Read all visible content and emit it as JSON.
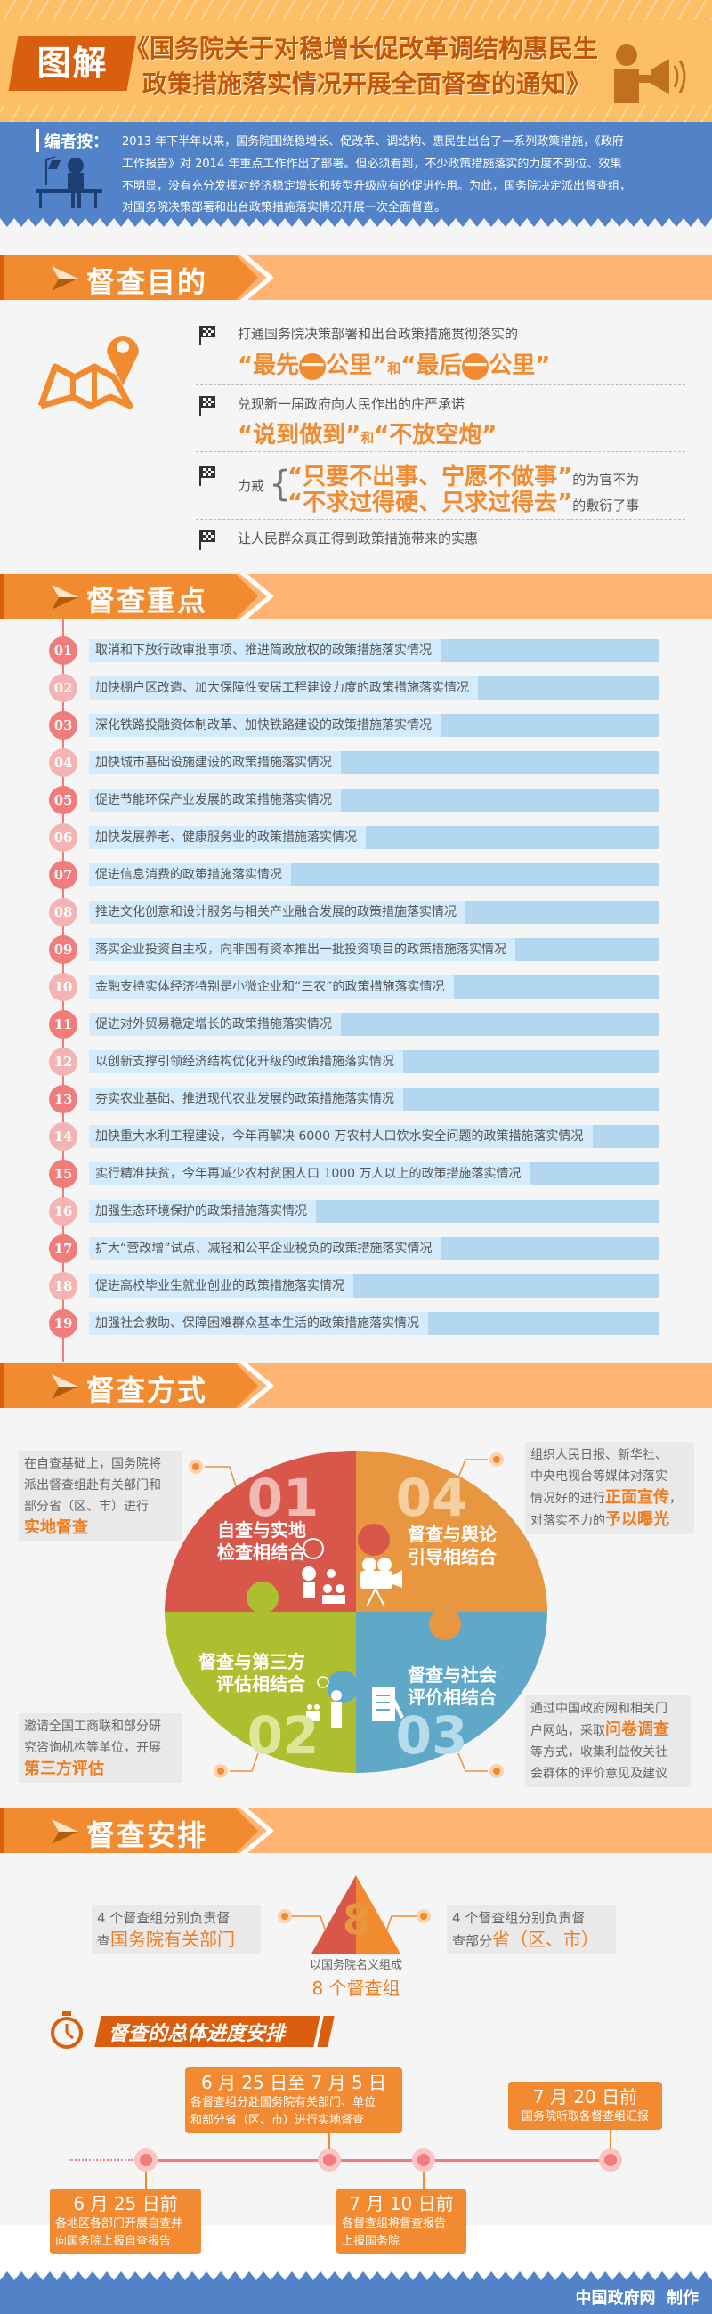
{
  "header": {
    "badge": "图解",
    "title_line1": "《国务院关于对稳增长促改革调结构惠民生",
    "title_line2": "政策措施落实情况开展全面督查的通知》",
    "icon": "megaphone-person-icon",
    "colors": {
      "header_bg": "#fdbf66",
      "accent": "#d95f0e",
      "title": "#c4560a"
    }
  },
  "editor": {
    "label": "编者按：",
    "lines": [
      "2013 年下半年以来，国务院围绕稳增长、促改革、调结构、惠民生出台了一系列政策措施，《政府",
      "工作报告》对 2014 年重点工作作出了部署。但必须看到，不少政策措施落实的力度不到位、效果",
      "不明显，没有充分发挥对经济稳定增长和转型升级应有的促进作用。为此，国务院决定派出督查组，",
      "对国务院决策部署和出台政策措施落实情况开展一次全面督查。"
    ],
    "bg": "#5283c8"
  },
  "purpose": {
    "title": "督查目的",
    "icon": "map-pin-icon",
    "item1": {
      "text": "打通国务院决策部署和出台政策措施贯彻落实的",
      "a": "“最先",
      "one": "一",
      "b": "公里”",
      "and": "和",
      "c": "“最后",
      "d": "公里”"
    },
    "item2": {
      "text": "兑现新一届政府向人民作出的庄严承诺",
      "a": "“说到做到”",
      "and": "和",
      "b": "“不放空炮”"
    },
    "item3": {
      "prefix": "力戒",
      "line1": "“只要不出事、宁愿不做事”",
      "suffix1": "的为官不为",
      "line2": "“不求过得硬、只求过得去”",
      "suffix2": "的敷衍了事"
    },
    "item4": {
      "text": "让人民群众真正得到政策措施带来的实惠"
    }
  },
  "focus": {
    "title": "督查重点",
    "items": [
      {
        "num": "01",
        "text": "取消和下放行政审批事项、推进简政放权的政策措施落实情况"
      },
      {
        "num": "02",
        "text": "加快棚户区改造、加大保障性安居工程建设力度的政策措施落实情况"
      },
      {
        "num": "03",
        "text": "深化铁路投融资体制改革、加快铁路建设的政策措施落实情况"
      },
      {
        "num": "04",
        "text": "加快城市基础设施建设的政策措施落实情况"
      },
      {
        "num": "05",
        "text": "促进节能环保产业发展的政策措施落实情况"
      },
      {
        "num": "06",
        "text": "加快发展养老、健康服务业的政策措施落实情况"
      },
      {
        "num": "07",
        "text": "促进信息消费的政策措施落实情况"
      },
      {
        "num": "08",
        "text": "推进文化创意和设计服务与相关产业融合发展的政策措施落实情况"
      },
      {
        "num": "09",
        "text": "落实企业投资自主权，向非国有资本推出一批投资项目的政策措施落实情况"
      },
      {
        "num": "10",
        "text": "金融支持实体经济特别是小微企业和“三农”的政策措施落实情况"
      },
      {
        "num": "11",
        "text": "促进对外贸易稳定增长的政策措施落实情况"
      },
      {
        "num": "12",
        "text": "以创新支撑引领经济结构优化升级的政策措施落实情况"
      },
      {
        "num": "13",
        "text": "夯实农业基础、推进现代农业发展的政策措施落实情况"
      },
      {
        "num": "14",
        "text": "加快重大水利工程建设，今年再解决 6000 万农村人口饮水安全问题的政策措施落实情况"
      },
      {
        "num": "15",
        "text": "实行精准扶贫，今年再减少农村贫困人口 1000 万人以上的政策措施落实情况"
      },
      {
        "num": "16",
        "text": "加强生态环境保护的政策措施落实情况"
      },
      {
        "num": "17",
        "text": "扩大“营改增”试点、减轻和公平企业税负的政策措施落实情况"
      },
      {
        "num": "18",
        "text": "促进高校毕业生就业创业的政策措施落实情况"
      },
      {
        "num": "19",
        "text": "加强社会救助、保障困难群众基本生活的政策措施落实情况"
      }
    ]
  },
  "methods": {
    "title": "督查方式",
    "quadrants": [
      {
        "num": "01",
        "line1": "自查与实地",
        "line2": "检查相结合",
        "color": "#d9574a"
      },
      {
        "num": "04",
        "line1": "督查与舆论",
        "line2": "引导相结合",
        "color": "#e8963f"
      },
      {
        "num": "02",
        "line1": "督查与第三方",
        "line2": "评估相结合",
        "color": "#adbf2e"
      },
      {
        "num": "03",
        "line1": "督查与社会",
        "line2": "评价相结合",
        "color": "#5fa8c8"
      }
    ],
    "note1": {
      "l1": "在自查基础上，国务院将",
      "l2": "派出督查组赴有关部门和",
      "l3": "部分省（区、市）进行",
      "hl": "实地督查"
    },
    "note4": {
      "l1": "组织人民日报、新华社、",
      "l2": "中央电视台等媒体对落实",
      "l3": "情况好的进行",
      "hl1": "正面宣传",
      "l3b": "，",
      "l4": "对落实不力的",
      "hl2": "予以曝光"
    },
    "note2": {
      "l1": "邀请全国工商联和部分研",
      "l2": "究咨询机构等单位，开展",
      "hl": "第三方评估"
    },
    "note3": {
      "l1": "通过中国政府网和相关门",
      "l2": "户网站，采取",
      "hl": "问卷调查",
      "l3": "等方式，收集利益攸关社",
      "l4": "会群体的评价意见及建议"
    }
  },
  "arrangement": {
    "title": "督查安排",
    "big_number": "8",
    "left": {
      "l1": "4 个督查组分别负责督",
      "l2": "查",
      "hl": "国务院有关部门"
    },
    "right": {
      "l1": "4 个督查组分别负责督",
      "l2": "查部分",
      "hl": "省（区、市）"
    },
    "caption": "以国务院名义组成",
    "count": "8 个督查组",
    "schedule_title": "督查的总体进度安排",
    "milestones": [
      {
        "date": "6 月 25 日前",
        "l1": "各地区各部门开展自查并",
        "l2": "向国务院上报自查报告"
      },
      {
        "date": "6 月 25 日至 7 月 5 日",
        "l1": "各督查组分赴国务院有关部门、单位",
        "l2": "和部分省（区、市）进行实地督查"
      },
      {
        "date": "7 月 10 日前",
        "l1": "各督查组将督查报告",
        "l2": "上报国务院"
      },
      {
        "date": "7 月 20 日前",
        "l1": "国务院听取各督查组汇报"
      }
    ]
  },
  "footer": {
    "credit": "中国政府网  制作"
  }
}
